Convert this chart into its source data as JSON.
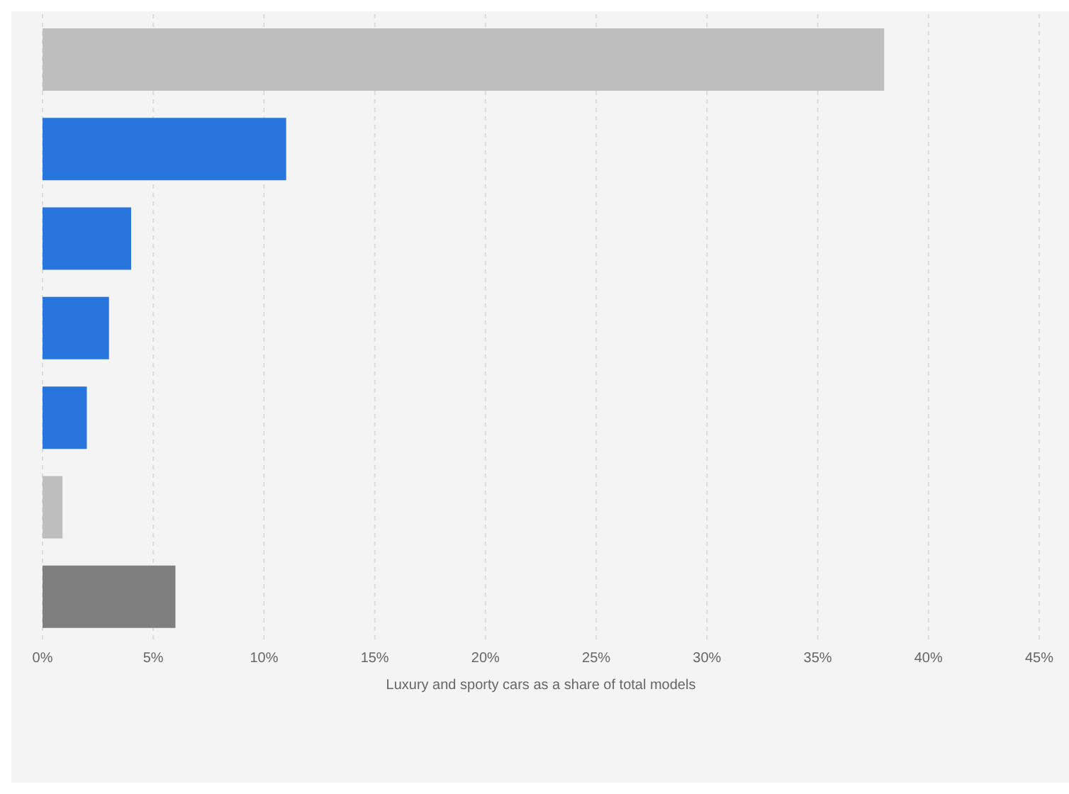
{
  "chart_data": {
    "type": "bar",
    "orientation": "horizontal",
    "categories": [
      null,
      null,
      null,
      null,
      null,
      null,
      null
    ],
    "values": [
      38,
      11,
      4,
      3,
      2,
      0.9,
      6
    ],
    "colors": [
      "#bebebe",
      "#2876dd",
      "#2876dd",
      "#2876dd",
      "#2876dd",
      "#bebebe",
      "#7f7f7f"
    ],
    "xlabel": "Luxury and sporty cars as a share of total models",
    "xlim": [
      0,
      45
    ],
    "xticks": [
      {
        "value": 0,
        "label": "0%"
      },
      {
        "value": 5,
        "label": "5%"
      },
      {
        "value": 10,
        "label": "10%"
      },
      {
        "value": 15,
        "label": "15%"
      },
      {
        "value": 20,
        "label": "20%"
      },
      {
        "value": 25,
        "label": "25%"
      },
      {
        "value": 30,
        "label": "30%"
      },
      {
        "value": 35,
        "label": "35%"
      },
      {
        "value": 40,
        "label": "40%"
      },
      {
        "value": 45,
        "label": "45%"
      }
    ],
    "grid": "x",
    "tick_labels": "x"
  }
}
